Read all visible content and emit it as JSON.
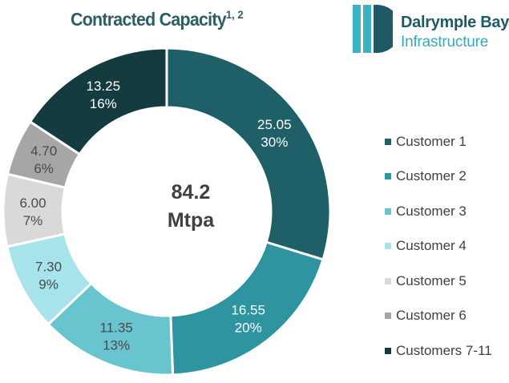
{
  "title": {
    "main": "Contracted Capacity",
    "superscript": "1, 2"
  },
  "logo": {
    "line1": "Dalrymple Bay",
    "line2": "Infrastructure",
    "mark_icon": "dalrymple-bay-logo-icon"
  },
  "colors": {
    "title": "#2d5d66",
    "label_dark": "#ffffff",
    "label_light": "#4a4a4a"
  },
  "chart_data": {
    "type": "pie",
    "variant": "donut",
    "title": "Contracted Capacity",
    "center_value": "84.2",
    "center_unit": "Mtpa",
    "categories": [
      "Customer 1",
      "Customer 2",
      "Customer 3",
      "Customer 4",
      "Customer 5",
      "Customer 6",
      "Customers 7-11"
    ],
    "values": [
      25.05,
      16.55,
      11.35,
      7.3,
      6.0,
      4.7,
      13.25
    ],
    "value_labels": [
      "25.05",
      "16.55",
      "11.35",
      "7.30",
      "6.00",
      "4.70",
      "13.25"
    ],
    "percent_labels": [
      "30%",
      "20%",
      "13%",
      "9%",
      "7%",
      "6%",
      "16%"
    ],
    "colors": [
      "#1f5f67",
      "#2e949f",
      "#68c5cf",
      "#a7e3ea",
      "#d9d9d9",
      "#a6a6a6",
      "#143c40"
    ],
    "legend_position": "right",
    "start": "top",
    "direction": "clockwise"
  }
}
